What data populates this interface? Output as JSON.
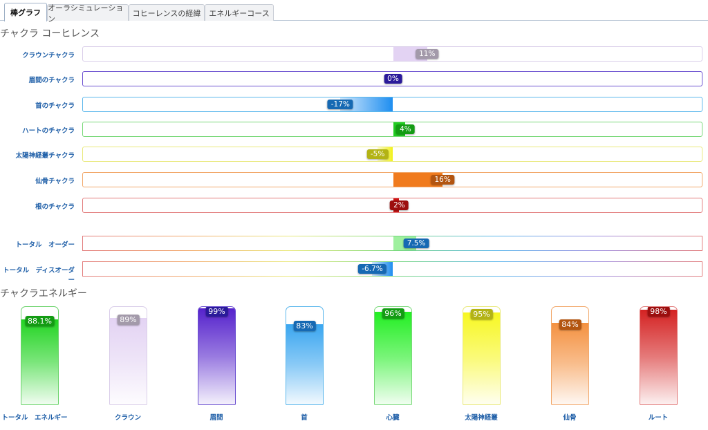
{
  "tabs": [
    {
      "label": "棒グラフ",
      "active": true
    },
    {
      "label": "オーラシミュレーション",
      "active": false
    },
    {
      "label": "コヒーレンスの経緯",
      "active": false
    },
    {
      "label": "エネルギーコース",
      "active": false
    }
  ],
  "coherence_title": "チャクラ コーヒレンス",
  "energy_title": "チャクラエネルギー",
  "chakra_rows": [
    {
      "label": "クラウンチャクラ",
      "value": 11,
      "display": "11%",
      "color": "#e3d3f3",
      "badge_color": "#a39aaa",
      "border": "#d9cde9"
    },
    {
      "label": "眉間のチャクラ",
      "value": 0,
      "display": "0%",
      "color": "#5522cc",
      "badge_color": "#2a1a9a",
      "border": "#6a4fd0"
    },
    {
      "label": "首のチャクラ",
      "value": -17,
      "display": "-17%",
      "color": "#1e8ef0",
      "badge_color": "#1669b3",
      "border": "#59b6ec"
    },
    {
      "label": "ハートのチャクラ",
      "value": 4,
      "display": "4%",
      "color": "#22cc22",
      "badge_color": "#139c13",
      "border": "#77d877"
    },
    {
      "label": "太陽神経叢チャクラ",
      "value": -5,
      "display": "-5%",
      "color": "#f2f21a",
      "badge_color": "#b3b315",
      "border": "#e9e97a"
    },
    {
      "label": "仙骨チャクラ",
      "value": 16,
      "display": "16%",
      "color": "#f07b1e",
      "badge_color": "#b35510",
      "border": "#f2a769"
    },
    {
      "label": "根のチャクラ",
      "value": 2,
      "display": "2%",
      "color": "#cc1414",
      "badge_color": "#9c0e0e",
      "border": "#e27a7a"
    }
  ],
  "order_rows": [
    {
      "label": "トータル　オーダー",
      "value": 7.5,
      "display": "7.5%",
      "color": "#9ff09f",
      "badge_color": "#1669b3"
    },
    {
      "label": "トータル　ディスオーダー",
      "value": -6.7,
      "display": "-6.7%",
      "color": "#1e8ef0",
      "badge_color": "#1669b3"
    }
  ],
  "energy_columns": [
    {
      "label": "トータル　エネルギー",
      "value": 88.1,
      "display": "88.1%",
      "color": "#22d422",
      "badge_color": "#139c13",
      "border": "#6ad36a"
    },
    {
      "label": "クラウン",
      "value": 89,
      "display": "89%",
      "color": "#e3d3f3",
      "badge_color": "#a39aaa",
      "border": "#d9cde9"
    },
    {
      "label": "眉間",
      "value": 99,
      "display": "99%",
      "color": "#5522cc",
      "badge_color": "#2a1a9a",
      "border": "#6a4fd0"
    },
    {
      "label": "首",
      "value": 83,
      "display": "83%",
      "color": "#3aa6f0",
      "badge_color": "#1669b3",
      "border": "#59b6ec"
    },
    {
      "label": "心臓",
      "value": 96,
      "display": "96%",
      "color": "#22ee22",
      "badge_color": "#139c13",
      "border": "#77d877"
    },
    {
      "label": "太陽神経叢",
      "value": 95,
      "display": "95%",
      "color": "#f7f722",
      "badge_color": "#b3b315",
      "border": "#e9e97a"
    },
    {
      "label": "仙骨",
      "value": 84,
      "display": "84%",
      "color": "#f49140",
      "badge_color": "#b35510",
      "border": "#f2a769"
    },
    {
      "label": "ルート",
      "value": 98,
      "display": "98%",
      "color": "#d42222",
      "badge_color": "#9c0e0e",
      "border": "#e27a7a"
    }
  ]
}
